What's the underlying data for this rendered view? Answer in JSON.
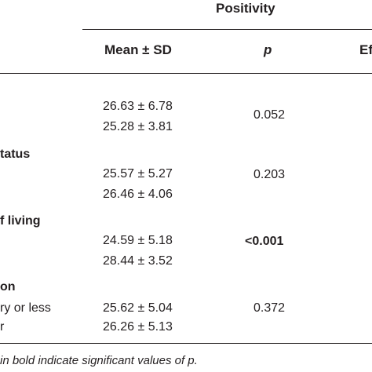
{
  "header": {
    "group_label": "Positivity",
    "col_mean_sd": "Mean ± SD",
    "col_p": "p",
    "col_effect_partial": "Ef"
  },
  "rows": [
    {
      "label": "",
      "values": [
        "26.63 ± 6.78",
        "25.28 ± 3.81"
      ],
      "p": "0.052",
      "p_bold": false
    },
    {
      "label": "tatus",
      "values": [
        "25.57 ± 5.27",
        "26.46 ± 4.06"
      ],
      "p": "0.203",
      "p_bold": false
    },
    {
      "label": "f living",
      "values": [
        "24.59 ± 5.18",
        "28.44 ± 3.52"
      ],
      "p": "<0.001",
      "p_bold": true
    },
    {
      "label": "on",
      "sublabels": [
        "ry or less",
        "r"
      ],
      "values": [
        "25.62 ± 5.04",
        "26.26 ± 5.13"
      ],
      "p": "0.372",
      "p_bold": false
    }
  ],
  "footnote": "in bold indicate significant values of p."
}
